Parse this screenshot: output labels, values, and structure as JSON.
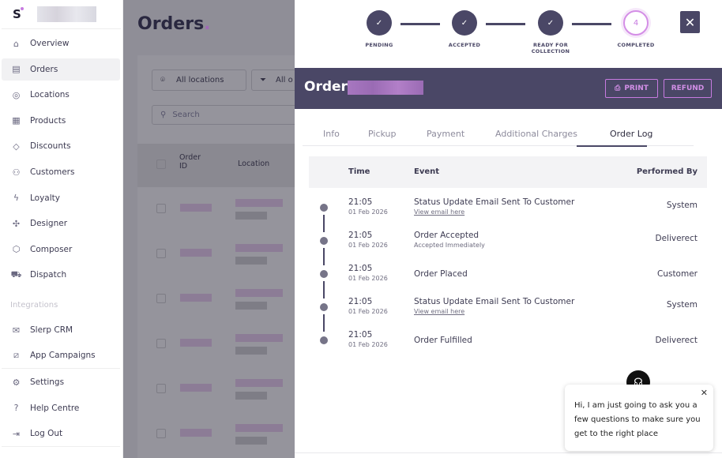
{
  "sidebar": {
    "logo": "S",
    "items": [
      {
        "label": "Overview",
        "icon": "home-icon"
      },
      {
        "label": "Orders",
        "icon": "clipboard-icon",
        "active": true
      },
      {
        "label": "Locations",
        "icon": "map-pin-icon"
      },
      {
        "label": "Products",
        "icon": "grid-icon"
      },
      {
        "label": "Discounts",
        "icon": "tag-icon"
      },
      {
        "label": "Customers",
        "icon": "users-icon"
      },
      {
        "label": "Loyalty",
        "icon": "lightning-icon"
      },
      {
        "label": "Designer",
        "icon": "puzzle-icon"
      },
      {
        "label": "Composer",
        "icon": "cube-icon"
      },
      {
        "label": "Dispatch",
        "icon": "truck-icon"
      }
    ],
    "integrations_label": "Integrations",
    "integrations": [
      {
        "label": "Slerp CRM",
        "icon": "mail-icon"
      },
      {
        "label": "App Campaigns",
        "icon": "ticket-icon"
      }
    ],
    "footer": [
      {
        "label": "Settings",
        "icon": "gear-icon"
      },
      {
        "label": "Help Centre",
        "icon": "help-icon"
      },
      {
        "label": "Log Out",
        "icon": "logout-icon"
      }
    ]
  },
  "main": {
    "title": "Orders",
    "location_filter": "All locations",
    "status_filter": "All o",
    "search_placeholder": "Search",
    "columns": [
      "Order ID",
      "Location"
    ]
  },
  "drawer": {
    "steps": [
      {
        "label": "PENDING",
        "state": "done",
        "glyph": "✓"
      },
      {
        "label": "ACCEPTED",
        "state": "done",
        "glyph": "✓"
      },
      {
        "label": "READY FOR COLLECTION",
        "state": "done",
        "glyph": "✓"
      },
      {
        "label": "COMPLETED",
        "state": "current",
        "glyph": "4"
      }
    ],
    "close": "✕",
    "order_label": "Order",
    "print": "PRINT",
    "refund": "REFUND",
    "tabs": [
      "Info",
      "Pickup",
      "Payment",
      "Additional Charges",
      "Order Log"
    ],
    "active_tab": "Order Log",
    "log_headers": {
      "time": "Time",
      "event": "Event",
      "by": "Performed By"
    },
    "log": [
      {
        "time": "21:05",
        "date": "01 Feb 2026",
        "event": "Status Update Email Sent To Customer",
        "sub": "View email here",
        "sub_link": true,
        "by": "System"
      },
      {
        "time": "21:05",
        "date": "01 Feb 2026",
        "event": "Order Accepted",
        "sub": "Accepted Immediately",
        "sub_link": false,
        "by": "Deliverect"
      },
      {
        "time": "21:05",
        "date": "01 Feb 2026",
        "event": "Order Placed",
        "sub": "",
        "sub_link": false,
        "by": "Customer"
      },
      {
        "time": "21:05",
        "date": "01 Feb 2026",
        "event": "Status Update Email Sent To Customer",
        "sub": "View email here",
        "sub_link": true,
        "by": "System"
      },
      {
        "time": "21:05",
        "date": "01 Feb 2026",
        "event": "Order Fulfilled",
        "sub": "",
        "sub_link": false,
        "by": "Deliverect"
      }
    ]
  },
  "chat": {
    "message": "Hi, I am just going to ask you a few questions to make sure you get to the right place"
  },
  "colors": {
    "primary": "#4a4766",
    "accent": "#c77be0"
  }
}
